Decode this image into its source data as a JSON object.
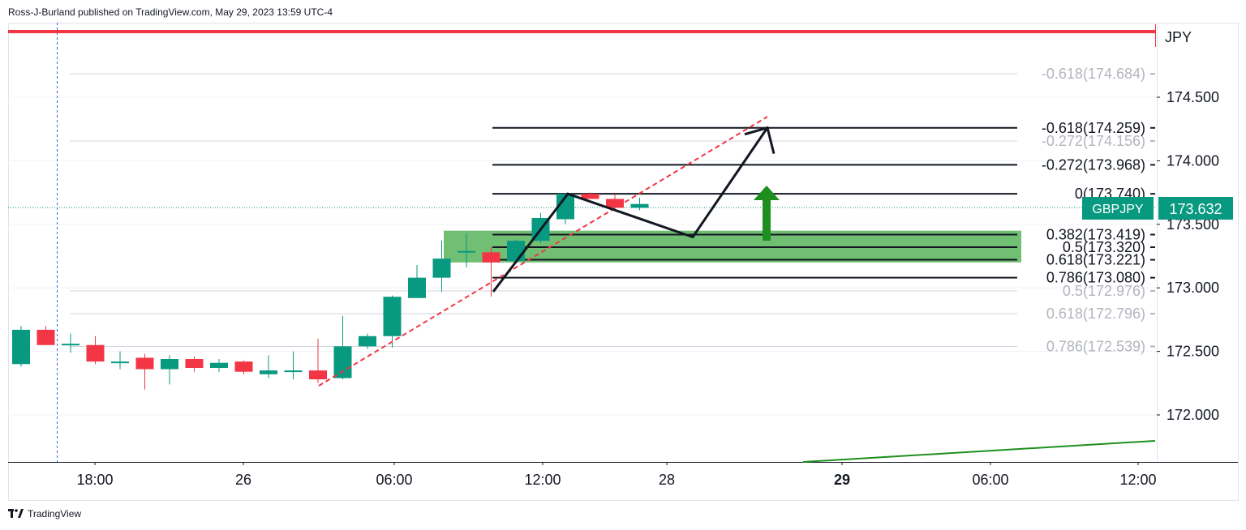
{
  "header": {
    "publisher_line": "Ross-J-Burland published on TradingView.com, May 29, 2023 13:59 UTC-4"
  },
  "footer": {
    "brand": "TradingView",
    "logo_icon": "tradingview-logo-icon"
  },
  "colors": {
    "up": "#089981",
    "down": "#f23645",
    "fib_line": "#131722",
    "fib_faded": "#b2b5be",
    "zone": "#4caf50",
    "trend_dashed": "#f23645",
    "arrow_green": "#1e8f1e",
    "top_red_line": "#f23645",
    "price_label_bg": "#089981",
    "green_trendline": "#1e8f1e"
  },
  "price_axis": {
    "currency": "JPY",
    "tick_labels": [
      "174.500",
      "174.000",
      "173.500",
      "173.000",
      "172.500",
      "172.000"
    ]
  },
  "time_axis": {
    "tick_labels": [
      "18:00",
      "26",
      "06:00",
      "12:00",
      "28",
      "29",
      "06:00",
      "12:00"
    ],
    "bold_labels": [
      "29"
    ]
  },
  "last_price": {
    "symbol": "GBPJPY",
    "value": "173.632"
  },
  "fib_labels": {
    "active": [
      {
        "ratio": "-0.618",
        "price": "174.259",
        "text": "-0.618(174.259)"
      },
      {
        "ratio": "-0.272",
        "price": "173.968",
        "text": "-0.272(173.968)"
      },
      {
        "ratio": "0",
        "price": "173.740",
        "text": "0(173.740)"
      },
      {
        "ratio": "0.382",
        "price": "173.419",
        "text": "0.382(173.419)"
      },
      {
        "ratio": "0.5",
        "price": "173.320",
        "text": "0.5(173.320)"
      },
      {
        "ratio": "0.618",
        "price": "173.221",
        "text": "0.618(173.221)"
      },
      {
        "ratio": "0.786",
        "price": "173.080",
        "text": "0.786(173.080)"
      }
    ],
    "faded": [
      {
        "ratio": "-0.618",
        "price": "174.684",
        "text": "-0.618(174.684)"
      },
      {
        "ratio": "-0.272",
        "price": "174.156",
        "text": "-0.272(174.156)"
      },
      {
        "ratio": "0.5",
        "price": "172.976",
        "text": "0.5(172.976)"
      },
      {
        "ratio": "0.618",
        "price": "172.796",
        "text": "0.618(172.796)"
      },
      {
        "ratio": "0.786",
        "price": "172.539",
        "text": "0.786(172.539)"
      }
    ]
  },
  "chart_data": {
    "type": "candlestick",
    "symbol": "GBPJPY",
    "ylim": [
      171.65,
      175.05
    ],
    "candles": [
      {
        "o": 172.4,
        "h": 172.7,
        "l": 172.38,
        "c": 172.67
      },
      {
        "o": 172.67,
        "h": 172.7,
        "l": 172.55,
        "c": 172.55
      },
      {
        "o": 172.55,
        "h": 172.64,
        "l": 172.49,
        "c": 172.56
      },
      {
        "o": 172.55,
        "h": 172.62,
        "l": 172.4,
        "c": 172.42
      },
      {
        "o": 172.41,
        "h": 172.5,
        "l": 172.36,
        "c": 172.42
      },
      {
        "o": 172.45,
        "h": 172.48,
        "l": 172.2,
        "c": 172.36
      },
      {
        "o": 172.36,
        "h": 172.47,
        "l": 172.24,
        "c": 172.44
      },
      {
        "o": 172.44,
        "h": 172.46,
        "l": 172.34,
        "c": 172.37
      },
      {
        "o": 172.37,
        "h": 172.44,
        "l": 172.34,
        "c": 172.41
      },
      {
        "o": 172.42,
        "h": 172.43,
        "l": 172.32,
        "c": 172.34
      },
      {
        "o": 172.32,
        "h": 172.47,
        "l": 172.29,
        "c": 172.35
      },
      {
        "o": 172.35,
        "h": 172.5,
        "l": 172.28,
        "c": 172.35
      },
      {
        "o": 172.35,
        "h": 172.6,
        "l": 172.25,
        "c": 172.28
      },
      {
        "o": 172.29,
        "h": 172.78,
        "l": 172.28,
        "c": 172.54
      },
      {
        "o": 172.54,
        "h": 172.64,
        "l": 172.52,
        "c": 172.62
      },
      {
        "o": 172.62,
        "h": 172.94,
        "l": 172.53,
        "c": 172.93
      },
      {
        "o": 172.92,
        "h": 173.18,
        "l": 172.92,
        "c": 173.08
      },
      {
        "o": 173.08,
        "h": 173.37,
        "l": 172.97,
        "c": 173.23
      },
      {
        "o": 173.29,
        "h": 173.43,
        "l": 173.16,
        "c": 173.29
      },
      {
        "o": 173.28,
        "h": 173.32,
        "l": 172.93,
        "c": 173.2
      },
      {
        "o": 173.21,
        "h": 173.38,
        "l": 173.2,
        "c": 173.37
      },
      {
        "o": 173.37,
        "h": 173.59,
        "l": 173.35,
        "c": 173.55
      },
      {
        "o": 173.54,
        "h": 173.74,
        "l": 173.5,
        "c": 173.74
      },
      {
        "o": 173.74,
        "h": 173.75,
        "l": 173.7,
        "c": 173.7
      },
      {
        "o": 173.7,
        "h": 173.74,
        "l": 173.62,
        "c": 173.63
      },
      {
        "o": 173.63,
        "h": 173.71,
        "l": 173.61,
        "c": 173.66
      }
    ],
    "fib_levels_active": [
      {
        "ratio": -0.618,
        "price": 174.259
      },
      {
        "ratio": -0.272,
        "price": 173.968
      },
      {
        "ratio": 0,
        "price": 173.74
      },
      {
        "ratio": 0.382,
        "price": 173.419
      },
      {
        "ratio": 0.5,
        "price": 173.32
      },
      {
        "ratio": 0.618,
        "price": 173.221
      },
      {
        "ratio": 0.786,
        "price": 173.08
      }
    ],
    "fib_levels_faded": [
      {
        "ratio": -0.618,
        "price": 174.684
      },
      {
        "ratio": -0.272,
        "price": 174.156
      },
      {
        "ratio": 0.5,
        "price": 172.976
      },
      {
        "ratio": 0.618,
        "price": 172.796
      },
      {
        "ratio": 0.786,
        "price": 172.539
      }
    ],
    "support_zone": {
      "top": 173.45,
      "bottom": 173.2
    },
    "last_price": 173.632,
    "projection_path_prices": [
      172.97,
      173.74,
      173.4,
      174.26
    ],
    "grid": true,
    "legend": "none"
  }
}
